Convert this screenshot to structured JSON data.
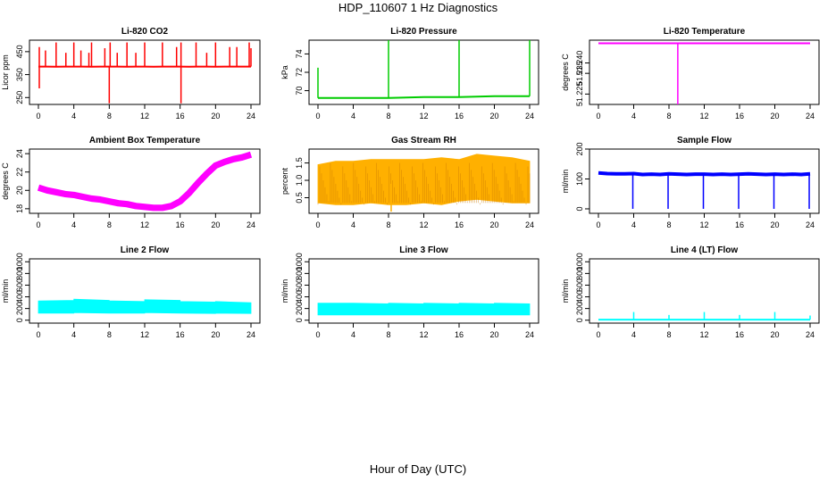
{
  "page": {
    "title": "HDP_110607  1 Hz Diagnostics",
    "xlabel": "Hour of Day (UTC)"
  },
  "chart_data": [
    {
      "type": "line",
      "title": "Li-820 CO2",
      "ylabel": "Licor ppm",
      "color": "#ff0000",
      "xlim": [
        0,
        24
      ],
      "xticks": [
        "0",
        "4",
        "8",
        "12",
        "16",
        "20",
        "24"
      ],
      "ylim": [
        220,
        500
      ],
      "yticks": [
        250,
        350,
        450
      ],
      "yticklabels": [
        "250",
        "350",
        "450"
      ],
      "series": [
        {
          "x": [
            0,
            1,
            2,
            3,
            4,
            5,
            6,
            7,
            8,
            9,
            10,
            11,
            12,
            13,
            14,
            15,
            16,
            17,
            18,
            19,
            20,
            21,
            22,
            23,
            24
          ],
          "y": [
            385,
            385,
            384,
            385,
            385,
            385,
            384,
            385,
            385,
            385,
            384,
            385,
            385,
            384,
            385,
            385,
            385,
            384,
            385,
            385,
            384,
            385,
            385,
            385,
            385
          ]
        }
      ],
      "spikes_up": [
        [
          0.1,
          470
        ],
        [
          0.8,
          455
        ],
        [
          2.0,
          490
        ],
        [
          3.1,
          445
        ],
        [
          4.0,
          490
        ],
        [
          4.8,
          455
        ],
        [
          5.7,
          445
        ],
        [
          6.0,
          490
        ],
        [
          7.5,
          465
        ],
        [
          8.1,
          490
        ],
        [
          8.9,
          445
        ],
        [
          10.0,
          490
        ],
        [
          11.0,
          445
        ],
        [
          12.0,
          490
        ],
        [
          14.0,
          490
        ],
        [
          15.6,
          470
        ],
        [
          16.1,
          490
        ],
        [
          17.8,
          490
        ],
        [
          19.0,
          445
        ],
        [
          20.0,
          490
        ],
        [
          21.6,
          470
        ],
        [
          22.4,
          470
        ],
        [
          23.8,
          490
        ],
        [
          24.0,
          465
        ]
      ],
      "spikes_down": [
        [
          0.1,
          290
        ],
        [
          8.0,
          225
        ],
        [
          16.1,
          225
        ]
      ]
    },
    {
      "type": "line",
      "title": "Li-820 Pressure",
      "ylabel": "kPa",
      "color": "#00cc00",
      "xlim": [
        0,
        24
      ],
      "xticks": [
        "0",
        "4",
        "8",
        "12",
        "16",
        "20",
        "24"
      ],
      "ylim": [
        68.5,
        75.5
      ],
      "yticks": [
        70,
        72,
        74
      ],
      "yticklabels": [
        "70",
        "72",
        "74"
      ],
      "series": [
        {
          "x": [
            0,
            4,
            8,
            12,
            16,
            20,
            24
          ],
          "y": [
            69.2,
            69.2,
            69.2,
            69.3,
            69.3,
            69.4,
            69.4
          ]
        }
      ],
      "spikes_up": [
        [
          0.0,
          72.5
        ],
        [
          8.0,
          75.5
        ],
        [
          16.0,
          75.5
        ],
        [
          24.0,
          75.5
        ]
      ],
      "spikes_down": []
    },
    {
      "type": "line",
      "title": "Li-820 Temperature",
      "ylabel": "degrees C",
      "color": "#ff00ff",
      "xlim": [
        0,
        24
      ],
      "xticks": [
        "0",
        "4",
        "8",
        "12",
        "16",
        "20",
        "24"
      ],
      "ylim": [
        51.22,
        51.251
      ],
      "yticks": [
        51.225,
        51.235,
        51.24
      ],
      "yticklabels": [
        "51.225",
        "51.235",
        "51.240"
      ],
      "series": [
        {
          "x": [
            0,
            24
          ],
          "y": [
            51.2495,
            51.2495
          ]
        }
      ],
      "spikes_up": [],
      "spikes_down": [
        [
          9.0,
          51.22
        ]
      ]
    },
    {
      "type": "line",
      "title": "Ambient Box Temperature",
      "ylabel": "degrees C",
      "color": "#ff00ff",
      "xlim": [
        0,
        24
      ],
      "xticks": [
        "0",
        "4",
        "8",
        "12",
        "16",
        "20",
        "24"
      ],
      "ylim": [
        17.5,
        24.5
      ],
      "yticks": [
        18,
        20,
        22,
        24
      ],
      "yticklabels": [
        "18",
        "20",
        "22",
        "24"
      ],
      "band": 0.7,
      "series": [
        {
          "x": [
            0,
            1,
            2,
            3,
            4,
            5,
            6,
            7,
            8,
            9,
            10,
            11,
            12,
            13,
            14,
            15,
            16,
            17,
            18,
            19,
            20,
            21,
            22,
            23,
            24
          ],
          "y": [
            20.3,
            20.0,
            19.8,
            19.6,
            19.5,
            19.3,
            19.1,
            19.0,
            18.8,
            18.6,
            18.5,
            18.3,
            18.2,
            18.1,
            18.1,
            18.3,
            18.8,
            19.7,
            20.8,
            21.8,
            22.7,
            23.1,
            23.4,
            23.6,
            23.9
          ]
        }
      ],
      "spikes_up": [],
      "spikes_down": []
    },
    {
      "type": "area",
      "title": "Gas Stream RH",
      "ylabel": "percent",
      "color": "#ffb000",
      "xlim": [
        0,
        24
      ],
      "xticks": [
        "0",
        "4",
        "8",
        "12",
        "16",
        "20",
        "24"
      ],
      "ylim": [
        0.05,
        1.9
      ],
      "yticks": [
        0.5,
        1.0,
        1.5
      ],
      "yticklabels": [
        "0.5",
        "1.0",
        "1.5"
      ],
      "series": [
        {
          "x": [
            0,
            2,
            4,
            6,
            8,
            10,
            12,
            14,
            16,
            18,
            20,
            22,
            24
          ],
          "high": [
            1.45,
            1.55,
            1.55,
            1.6,
            1.6,
            1.6,
            1.6,
            1.65,
            1.6,
            1.75,
            1.7,
            1.65,
            1.55
          ],
          "low": [
            0.35,
            0.3,
            0.3,
            0.35,
            0.3,
            0.3,
            0.35,
            0.3,
            0.4,
            0.45,
            0.4,
            0.35,
            0.35
          ]
        }
      ],
      "spikes_up": [],
      "spikes_down": [
        [
          8.3,
          0.1
        ]
      ]
    },
    {
      "type": "line",
      "title": "Sample Flow",
      "ylabel": "ml/min",
      "color": "#0000ff",
      "xlim": [
        0,
        24
      ],
      "xticks": [
        "0",
        "4",
        "8",
        "12",
        "16",
        "20",
        "24"
      ],
      "ylim": [
        -15,
        200
      ],
      "yticks": [
        0,
        100,
        200
      ],
      "yticklabels": [
        "0",
        "100",
        "200"
      ],
      "band": 12,
      "series": [
        {
          "x": [
            0,
            1,
            2,
            3,
            4,
            5,
            6,
            7,
            8,
            9,
            10,
            11,
            12,
            13,
            14,
            15,
            16,
            17,
            18,
            19,
            20,
            21,
            22,
            23,
            24
          ],
          "y": [
            120,
            118,
            117,
            117,
            118,
            115,
            116,
            115,
            117,
            116,
            115,
            116,
            116,
            115,
            116,
            115,
            116,
            117,
            116,
            115,
            116,
            115,
            116,
            115,
            117
          ]
        }
      ],
      "spikes_up": [],
      "spikes_down": [
        [
          3.9,
          0
        ],
        [
          7.9,
          0
        ],
        [
          11.9,
          0
        ],
        [
          15.9,
          0
        ],
        [
          19.9,
          0
        ],
        [
          23.9,
          0
        ]
      ]
    },
    {
      "type": "area",
      "title": "Line 2 Flow",
      "ylabel": "ml/min",
      "color": "#00ffff",
      "xlim": [
        0,
        24
      ],
      "xticks": [
        "0",
        "4",
        "8",
        "12",
        "16",
        "20",
        "24"
      ],
      "ylim": [
        -50,
        1050
      ],
      "yticks": [
        0,
        200,
        400,
        600,
        800,
        1000
      ],
      "yticklabels": [
        "0",
        "200",
        "400",
        "600",
        "800",
        "1000"
      ],
      "series": [
        {
          "x": [
            0,
            4,
            4,
            8,
            8,
            12,
            12,
            16,
            16,
            20,
            20,
            24
          ],
          "high": [
            330,
            340,
            360,
            340,
            330,
            320,
            350,
            340,
            320,
            310,
            320,
            300
          ],
          "low": [
            120,
            120,
            130,
            120,
            120,
            120,
            130,
            120,
            120,
            115,
            120,
            115
          ]
        }
      ],
      "spikes_up": [],
      "spikes_down": []
    },
    {
      "type": "area",
      "title": "Line 3 Flow",
      "ylabel": "ml/min",
      "color": "#00ffff",
      "xlim": [
        0,
        24
      ],
      "xticks": [
        "0",
        "4",
        "8",
        "12",
        "16",
        "20",
        "24"
      ],
      "ylim": [
        -50,
        1050
      ],
      "yticks": [
        0,
        200,
        400,
        600,
        800,
        1000
      ],
      "yticklabels": [
        "0",
        "200",
        "400",
        "600",
        "800",
        "1000"
      ],
      "series": [
        {
          "x": [
            0,
            4,
            4,
            8,
            8,
            12,
            12,
            16,
            16,
            20,
            20,
            24
          ],
          "high": [
            290,
            290,
            290,
            280,
            290,
            280,
            290,
            280,
            290,
            280,
            290,
            280
          ],
          "low": [
            90,
            90,
            90,
            90,
            90,
            90,
            90,
            90,
            90,
            90,
            90,
            90
          ]
        }
      ],
      "spikes_up": [],
      "spikes_down": []
    },
    {
      "type": "line",
      "title": "Line 4 (LT) Flow",
      "ylabel": "ml/min",
      "color": "#00ffff",
      "xlim": [
        0,
        24
      ],
      "xticks": [
        "0",
        "4",
        "8",
        "12",
        "16",
        "20",
        "24"
      ],
      "ylim": [
        -50,
        1050
      ],
      "yticks": [
        0,
        200,
        400,
        600,
        800,
        1000
      ],
      "yticklabels": [
        "0",
        "200",
        "400",
        "600",
        "800",
        "1000"
      ],
      "series": [
        {
          "x": [
            0,
            24
          ],
          "y": [
            10,
            10
          ]
        }
      ],
      "spikes_up": [
        [
          4.0,
          140
        ],
        [
          8.0,
          90
        ],
        [
          12.0,
          140
        ],
        [
          16.0,
          90
        ],
        [
          20.0,
          140
        ],
        [
          24.0,
          80
        ]
      ],
      "spikes_down": []
    }
  ]
}
